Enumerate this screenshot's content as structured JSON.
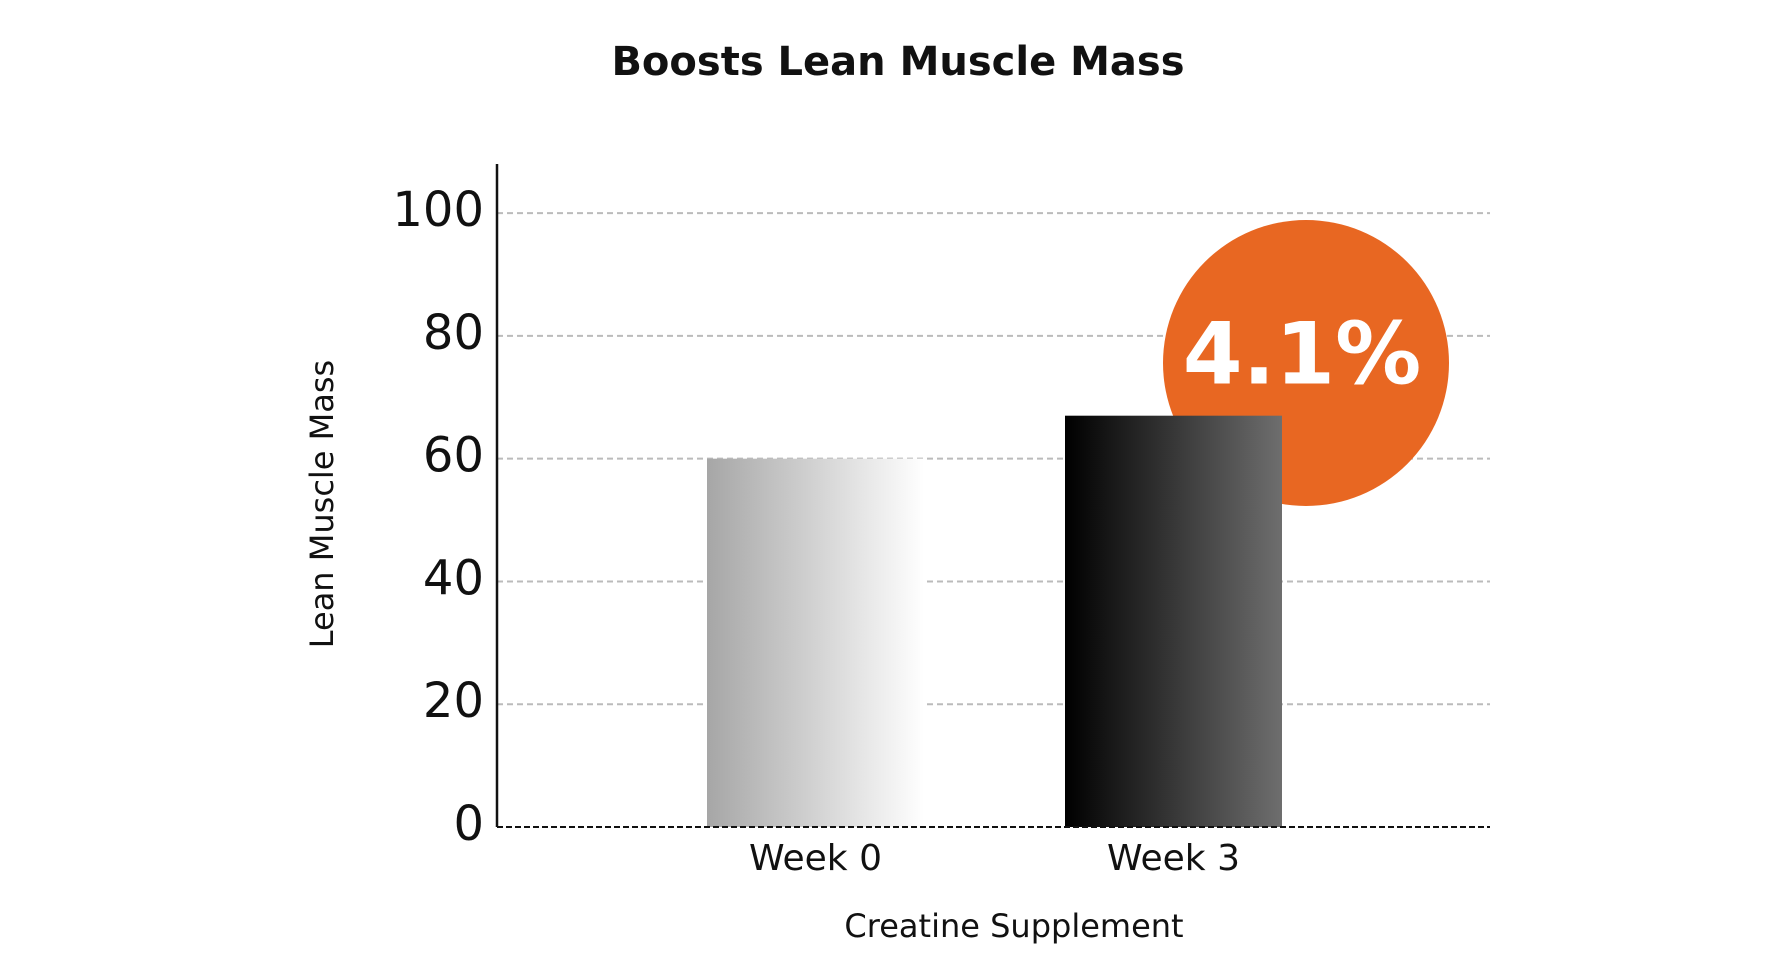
{
  "chart_data": {
    "type": "bar",
    "title": "Boosts Lean Muscle Mass",
    "x_label": "Creatine Supplement",
    "y_label": "Lean Muscle Mass",
    "categories": [
      "Week 0",
      "Week 3"
    ],
    "values": [
      60,
      67
    ],
    "bar_gradients": [
      [
        "#a6a6a6",
        "#ffffff"
      ],
      [
        "#000000",
        "#6e6e6e"
      ]
    ],
    "ylim": [
      0,
      108
    ],
    "yticks": [
      0,
      20,
      40,
      60,
      80,
      100
    ],
    "grid": true,
    "annotation": {
      "text": "4.1%",
      "color": "#e86722"
    }
  }
}
